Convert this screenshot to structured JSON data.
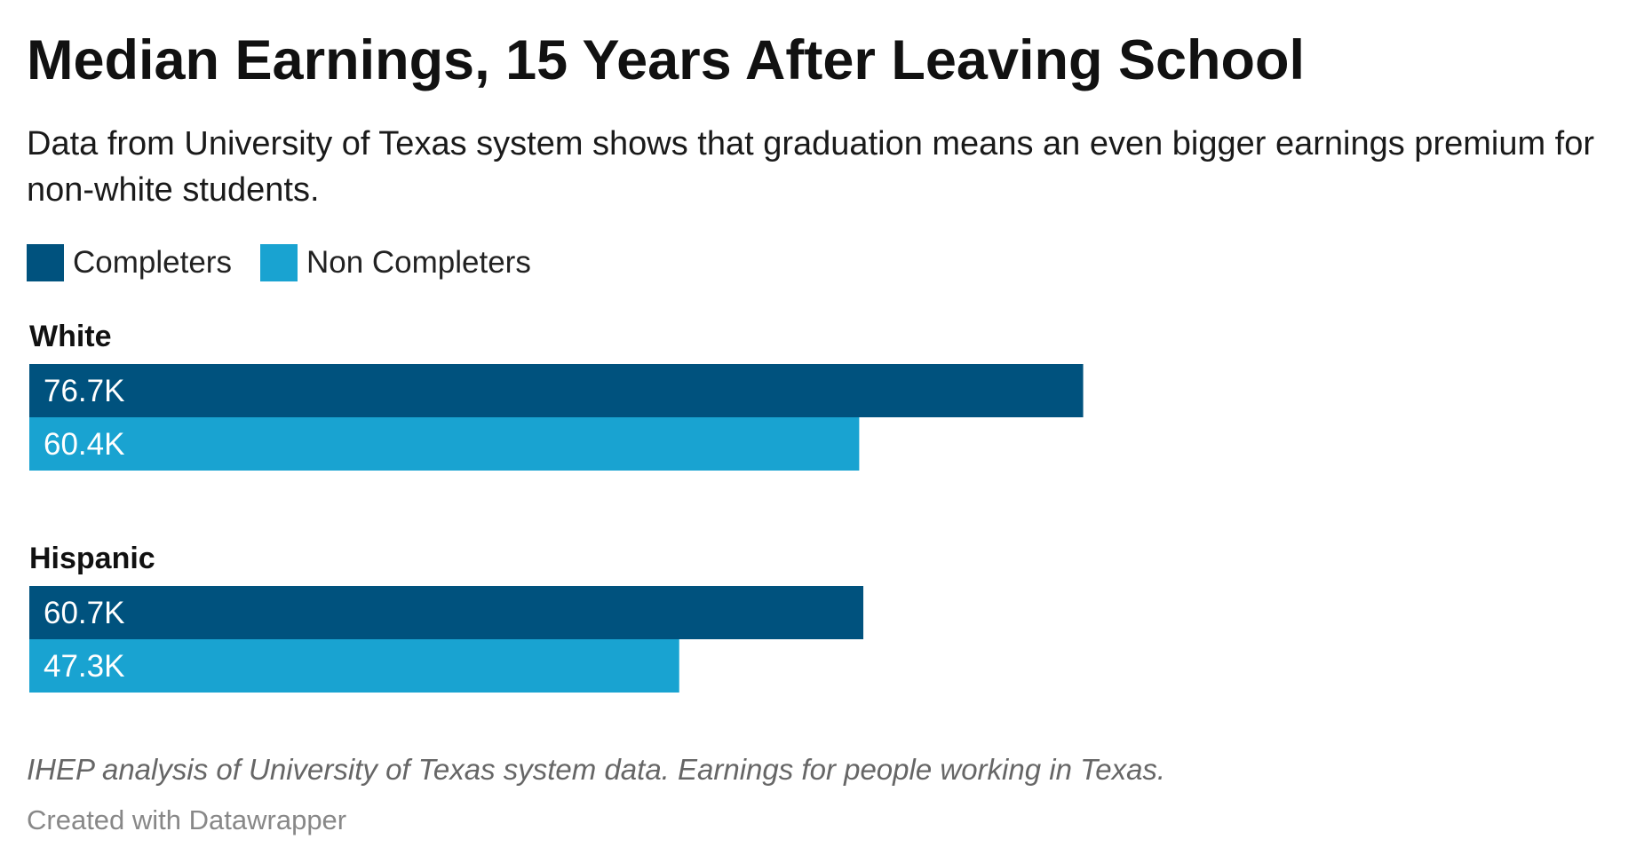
{
  "chart_data": {
    "type": "bar",
    "orientation": "horizontal",
    "title": "Median Earnings, 15 Years After Leaving School",
    "subtitle": "Data from University of Texas system shows that graduation means an even bigger earnings premium for non-white students.",
    "categories": [
      "White",
      "Hispanic"
    ],
    "series": [
      {
        "name": "Completers",
        "color": "#00527e",
        "values": [
          76.7,
          60.7
        ],
        "labels": [
          "76.7K",
          "60.7K"
        ]
      },
      {
        "name": "Non Completers",
        "color": "#19a3d1",
        "values": [
          60.4,
          47.3
        ],
        "labels": [
          "60.4K",
          "47.3K"
        ]
      }
    ],
    "unit": "K",
    "xlim": [
      0,
      100
    ],
    "grid": false,
    "legend_position": "top-left",
    "source": "IHEP analysis of University of Texas system data. Earnings for people working in Texas.",
    "credit": "Created with Datawrapper"
  }
}
